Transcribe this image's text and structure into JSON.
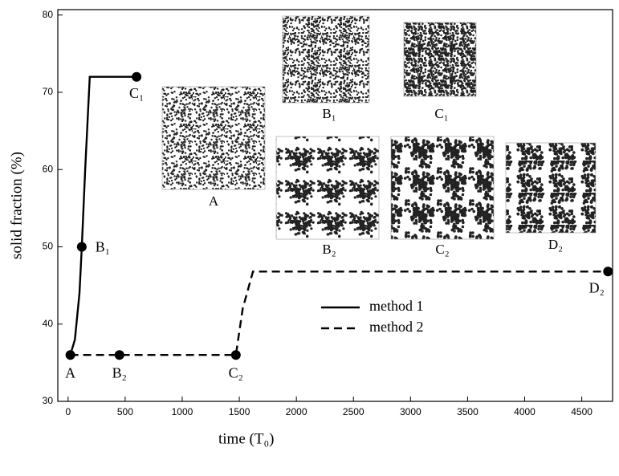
{
  "chart_data": {
    "type": "line",
    "xlabel": "time (T₀)",
    "ylabel": "solid fraction (%)",
    "xlim": [
      -90,
      4770
    ],
    "xticks": [
      0,
      500,
      1000,
      1500,
      2000,
      2500,
      3000,
      3500,
      4000,
      4500
    ],
    "ylim": [
      30,
      80.7
    ],
    "yticks": [
      30,
      40,
      50,
      60,
      70,
      80
    ],
    "legend": "lower center",
    "series": [
      {
        "name": "method 1",
        "color": "#000000",
        "dash": false,
        "x": [
          20,
          60,
          100,
          120,
          150,
          190,
          300,
          600
        ],
        "values": [
          36,
          38,
          44,
          50,
          60,
          72,
          72,
          72
        ]
      },
      {
        "name": "method 2",
        "color": "#000000",
        "dash": true,
        "x": [
          20,
          450,
          1470,
          1530,
          1620,
          4730
        ],
        "values": [
          36,
          36,
          36,
          42,
          46.8,
          46.8
        ]
      }
    ],
    "points": {
      "labels": [
        "A",
        "B₁",
        "C₁",
        "B₂",
        "C₂",
        "D₂"
      ],
      "x": [
        20,
        120,
        600,
        450,
        1470,
        4730
      ],
      "values": [
        36,
        50,
        72,
        36,
        36,
        46.8
      ]
    }
  }
}
